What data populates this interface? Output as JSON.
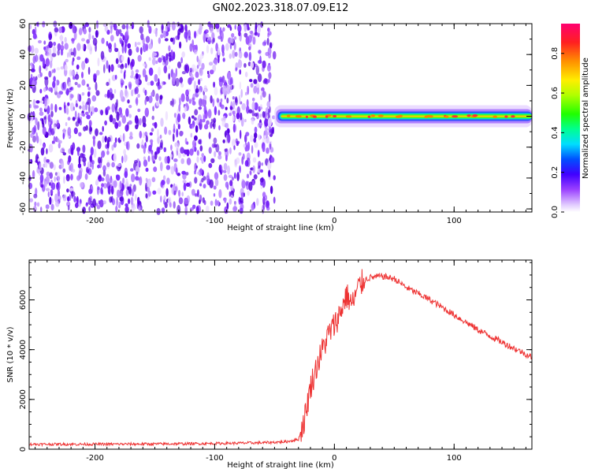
{
  "title": "GN02.2023.318.07.09.E12",
  "chart_data": [
    {
      "type": "heatmap",
      "xlabel": "Height of straight line (km)",
      "ylabel": "Frequency (Hz)",
      "xlim": [
        -255,
        165
      ],
      "ylim": [
        -62,
        60
      ],
      "xticks": [
        -200,
        -100,
        0,
        100
      ],
      "yticks": [
        60,
        40,
        20,
        0,
        -20,
        -40,
        -60
      ],
      "noise_region_x": [
        -255,
        -50
      ],
      "signal_region_x": [
        -50,
        165
      ],
      "signal_center_freq": 0,
      "colorbar": {
        "label": "Normalized spectral amplitude",
        "range": [
          0.0,
          0.95
        ],
        "ticks": [
          0.0,
          0.2,
          0.4,
          0.6,
          0.8
        ]
      },
      "grid": false
    },
    {
      "type": "line",
      "xlabel": "Height of straight line (km)",
      "ylabel": "SNR (10 * v/v)",
      "xlim": [
        -255,
        165
      ],
      "ylim": [
        0,
        7600
      ],
      "xticks": [
        -200,
        -100,
        0,
        100
      ],
      "yticks": [
        0,
        2000,
        4000,
        6000
      ],
      "series": [
        {
          "color": "#ee3333",
          "x": [
            -255,
            -200,
            -150,
            -100,
            -60,
            -40,
            -30,
            -25,
            -20,
            -15,
            -10,
            -5,
            0,
            5,
            10,
            15,
            20,
            25,
            30,
            40,
            50,
            60,
            80,
            100,
            120,
            140,
            165
          ],
          "y": [
            200,
            200,
            210,
            230,
            260,
            300,
            400,
            1200,
            2500,
            3300,
            4000,
            4600,
            5000,
            5500,
            6200,
            5800,
            6500,
            6800,
            6900,
            6950,
            6850,
            6500,
            6000,
            5400,
            4800,
            4300,
            3700
          ]
        }
      ],
      "grid": false
    }
  ]
}
